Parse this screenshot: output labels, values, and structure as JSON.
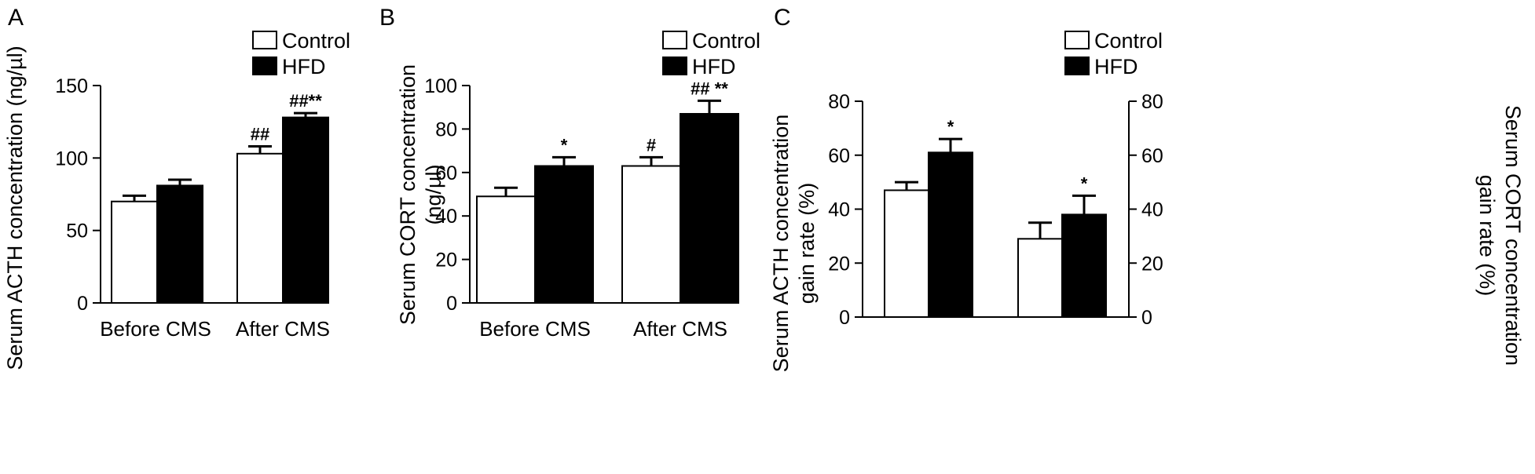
{
  "colors": {
    "control": "#ffffff",
    "hfd": "#000000",
    "stroke": "#000000"
  },
  "chart_data": [
    {
      "type": "bar",
      "panel": "A",
      "categories": [
        "Before CMS",
        "After CMS"
      ],
      "series": [
        {
          "name": "Control",
          "values": [
            70,
            103
          ],
          "errors": [
            4,
            5
          ],
          "annotations": [
            "",
            "##"
          ]
        },
        {
          "name": "HFD",
          "values": [
            81,
            128
          ],
          "errors": [
            4,
            3
          ],
          "annotations": [
            "",
            "##**"
          ]
        }
      ],
      "ylabel": "Serum ACTH concentration (ng/µl)",
      "ylim": [
        0,
        150
      ],
      "yticks": [
        "0",
        "50",
        "100",
        "150"
      ],
      "legend": "top-right"
    },
    {
      "type": "bar",
      "panel": "B",
      "categories": [
        "Before CMS",
        "After CMS"
      ],
      "series": [
        {
          "name": "Control",
          "values": [
            49,
            63
          ],
          "errors": [
            4,
            4
          ],
          "annotations": [
            "",
            "#"
          ]
        },
        {
          "name": "HFD",
          "values": [
            63,
            87
          ],
          "errors": [
            4,
            6
          ],
          "annotations": [
            "*",
            "## **"
          ]
        }
      ],
      "ylabel": "Serum CORT concentration",
      "ylabel2": "(ng/µl)",
      "ylim": [
        0,
        100
      ],
      "yticks": [
        "0",
        "20",
        "40",
        "60",
        "80",
        "100"
      ],
      "legend": "top-right"
    },
    {
      "type": "bar",
      "panel": "C",
      "groups": [
        {
          "axis": "left",
          "values": [
            47,
            61
          ],
          "errors": [
            3,
            5
          ],
          "annotations": [
            "",
            "*"
          ]
        },
        {
          "axis": "right",
          "values": [
            29,
            38
          ],
          "errors": [
            6,
            7
          ],
          "annotations": [
            "",
            "*"
          ]
        }
      ],
      "series": [
        {
          "name": "Control"
        },
        {
          "name": "HFD"
        }
      ],
      "ylabel_left": "Serum ACTH concentration",
      "ylabel_left2": "gain rate (%)",
      "ylabel_right": "Serum CORT concentration",
      "ylabel_right2": "gain rate (%)",
      "ylim": [
        0,
        80
      ],
      "yticks": [
        "0",
        "20",
        "40",
        "60",
        "80"
      ],
      "legend": "top-right"
    }
  ]
}
